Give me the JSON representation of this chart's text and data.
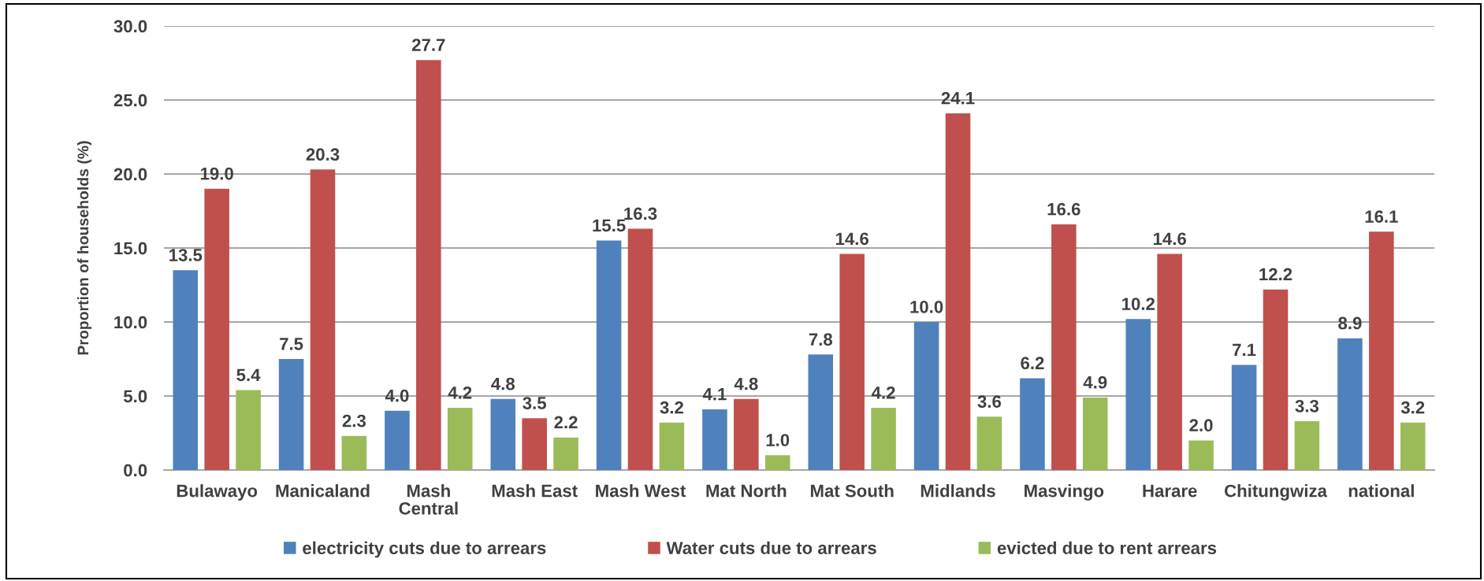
{
  "chart_data": {
    "type": "bar",
    "ylabel": "Proportion of households (%)",
    "categories": [
      "Bulawayo",
      "Manicaland",
      "Mash Central",
      "Mash East",
      "Mash West",
      "Mat North",
      "Mat South",
      "Midlands",
      "Masvingo",
      "Harare",
      "Chitungwiza",
      "national"
    ],
    "series": [
      {
        "name": "electricity cuts due to arrears",
        "color": "#4f81bd",
        "values": [
          13.5,
          7.5,
          4.0,
          4.8,
          15.5,
          4.1,
          7.8,
          10.0,
          6.2,
          10.2,
          7.1,
          8.9
        ],
        "value_labels": [
          "13.5",
          "7.5",
          "4.0",
          "4.8",
          "15.5",
          "4.1",
          "7.8",
          "10.0",
          "6.2",
          "10.2",
          "7.1",
          "8.9"
        ]
      },
      {
        "name": "Water cuts due to arrears",
        "color": "#c0504d",
        "values": [
          19.0,
          20.3,
          27.7,
          3.5,
          16.3,
          4.8,
          14.6,
          24.1,
          16.6,
          14.6,
          12.2,
          16.1
        ],
        "value_labels": [
          "19.0",
          "20.3",
          "27.7",
          "3.5",
          "16.3",
          "4.8",
          "14.6",
          "24.1",
          "16.6",
          "14.6",
          "12.2",
          "16.1"
        ]
      },
      {
        "name": "evicted due to rent arrears",
        "color": "#9bbb59",
        "values": [
          5.4,
          2.3,
          4.2,
          2.2,
          3.2,
          1.0,
          4.2,
          3.6,
          4.9,
          2.0,
          3.3,
          3.2
        ],
        "value_labels": [
          "5.4",
          "2.3",
          "4.2",
          "2.2",
          "3.2",
          "1.0",
          "4.2",
          "3.6",
          "4.9",
          "2.0",
          "3.3",
          "3.2"
        ]
      }
    ],
    "ylim": [
      0,
      30
    ],
    "yticks": [
      {
        "value": 0,
        "label": "0.0"
      },
      {
        "value": 5,
        "label": "5.0"
      },
      {
        "value": 10,
        "label": "10.0"
      },
      {
        "value": 15,
        "label": "15.0"
      },
      {
        "value": 20,
        "label": "20.0"
      },
      {
        "value": 25,
        "label": "25.0"
      },
      {
        "value": 30,
        "label": "30.0"
      }
    ],
    "grid": "y",
    "legend": "bottom"
  }
}
